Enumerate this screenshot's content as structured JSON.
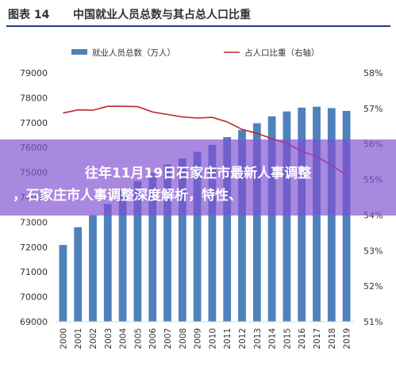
{
  "figure": {
    "label": "图表 14",
    "title": "中国就业人员总数与其占总人口比重"
  },
  "overlay": {
    "line1": "往年11月19日石家庄市最新人事调整",
    "line2": "，石家庄市人事调整深度解析，特性、"
  },
  "colors": {
    "bar": "#4f81bd",
    "line": "#c0262b",
    "axis": "#d9d9d9",
    "overlay": "#8050d2"
  },
  "chart_data": {
    "type": "bar",
    "categories": [
      "2000",
      "2001",
      "2002",
      "2003",
      "2004",
      "2005",
      "2006",
      "2007",
      "2008",
      "2009",
      "2010",
      "2011",
      "2012",
      "2013",
      "2014",
      "2015",
      "2016",
      "2017",
      "2018",
      "2019"
    ],
    "series": [
      {
        "name": "就业人员总数（万人）",
        "type": "bar",
        "axis": "left",
        "values": [
          72085,
          72797,
          73280,
          73736,
          74264,
          74647,
          74978,
          75321,
          75564,
          75828,
          76105,
          76420,
          76704,
          76977,
          77253,
          77451,
          77603,
          77640,
          77586,
          77471
        ]
      },
      {
        "name": "占人口比重（右轴）",
        "type": "line",
        "axis": "right",
        "values": [
          56.87,
          56.96,
          56.95,
          57.06,
          57.06,
          57.05,
          56.9,
          56.83,
          56.76,
          56.73,
          56.75,
          56.62,
          56.41,
          56.3,
          56.15,
          56.02,
          55.79,
          55.65,
          55.4,
          55.12
        ]
      }
    ],
    "yticks_left": [
      "69000",
      "70000",
      "71000",
      "72000",
      "73000",
      "74000",
      "75000",
      "76000",
      "77000",
      "78000",
      "79000"
    ],
    "yticks_right": [
      "51%",
      "52%",
      "53%",
      "54%",
      "55%",
      "56%",
      "57%",
      "58%"
    ],
    "ylim_left": [
      69000,
      79000
    ],
    "ylim_right": [
      51,
      58
    ],
    "legend_position": "top",
    "grid": false
  }
}
